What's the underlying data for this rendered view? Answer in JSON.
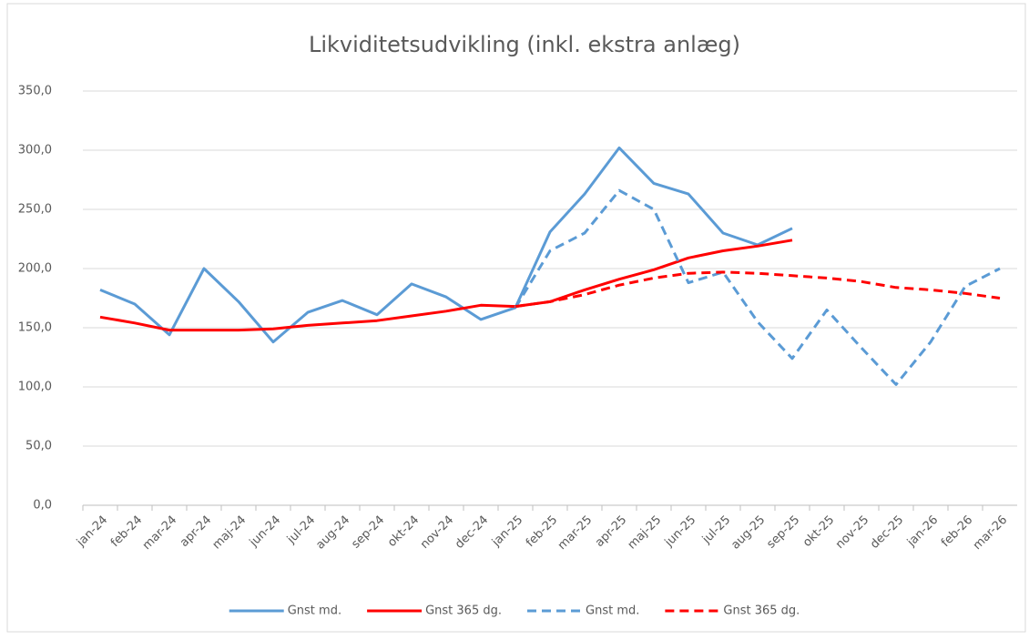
{
  "chart_data": {
    "type": "line",
    "title": "Likviditetsudvikling (inkl. ekstra anlæg)",
    "categories": [
      "jan-24",
      "feb-24",
      "mar-24",
      "apr-24",
      "maj-24",
      "jun-24",
      "jul-24",
      "aug-24",
      "sep-24",
      "okt-24",
      "nov-24",
      "dec-24",
      "jan-25",
      "feb-25",
      "mar-25",
      "apr-25",
      "maj-25",
      "jun-25",
      "jul-25",
      "aug-25",
      "sep-25",
      "okt-25",
      "nov-25",
      "dec-25",
      "jan-26",
      "feb-26",
      "mar-26"
    ],
    "series": [
      {
        "name": "Gnst md.",
        "color": "#5b9bd5",
        "dashed": false,
        "values": [
          182,
          170,
          144,
          200,
          172,
          138,
          163,
          173,
          161,
          187,
          176,
          157,
          167,
          231,
          263,
          302,
          272,
          263,
          230,
          220,
          234,
          null,
          null,
          null,
          null,
          null,
          null
        ]
      },
      {
        "name": "Gnst 365 dg.",
        "color": "#ff0000",
        "dashed": false,
        "values": [
          159,
          154,
          148,
          148,
          148,
          149,
          152,
          154,
          156,
          160,
          164,
          169,
          168,
          172,
          182,
          191,
          199,
          209,
          215,
          219,
          224,
          null,
          null,
          null,
          null,
          null,
          null
        ]
      },
      {
        "name": "Gnst md.",
        "color": "#5b9bd5",
        "dashed": true,
        "values": [
          null,
          null,
          null,
          null,
          null,
          null,
          null,
          null,
          null,
          null,
          null,
          null,
          167,
          215,
          230,
          266,
          250,
          188,
          197,
          155,
          124,
          165,
          133,
          102,
          138,
          185,
          200
        ]
      },
      {
        "name": "Gnst 365 dg.",
        "color": "#ff0000",
        "dashed": true,
        "values": [
          null,
          null,
          null,
          null,
          null,
          null,
          null,
          null,
          null,
          null,
          null,
          null,
          168,
          172,
          178,
          186,
          192,
          196,
          197,
          196,
          194,
          192,
          189,
          184,
          182,
          179,
          175
        ]
      }
    ],
    "ylim": [
      0,
      350
    ],
    "yticks": [
      {
        "value": 0,
        "label": "0,0"
      },
      {
        "value": 50,
        "label": "50,0"
      },
      {
        "value": 100,
        "label": "100,0"
      },
      {
        "value": 150,
        "label": "150,0"
      },
      {
        "value": 200,
        "label": "200,0"
      },
      {
        "value": 250,
        "label": "250,0"
      },
      {
        "value": 300,
        "label": "300,0"
      },
      {
        "value": 350,
        "label": "350,0"
      }
    ],
    "grid": true
  }
}
